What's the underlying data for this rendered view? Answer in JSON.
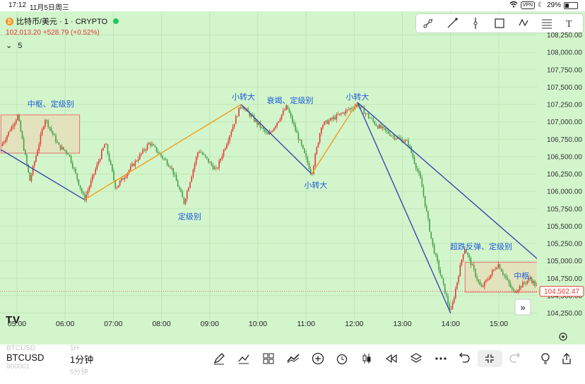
{
  "status_bar": {
    "time": "17:12",
    "date": "11月5日周三",
    "vpn": "VPN",
    "battery": "29%"
  },
  "header": {
    "coin_icon": "bitcoin-icon",
    "symbol_title": "比特币/美元 · 1 · CRYPTO",
    "price_line": "102,013.20 +528.79 (+0.52%)",
    "indicator_count": "5"
  },
  "toolbox": {
    "icons": [
      "ray-tool-icon",
      "trend-line-icon",
      "vertical-line-icon",
      "rectangle-icon",
      "path-icon",
      "fib-icon",
      "text-tool-icon"
    ]
  },
  "bottom_bar": {
    "symbol_ghost_above": "BTCUSD",
    "symbol": "BTCUSD",
    "symbol_ghost_below": "000001",
    "interval_ghost_above": "1H",
    "interval": "1分钟",
    "interval_ghost_below": "5分钟",
    "tools": [
      "pen-icon",
      "indicators-icon",
      "templates-icon",
      "compare-icon",
      "plus-circle-icon",
      "alarm-icon",
      "candle-icon",
      "replay-icon",
      "layers-icon",
      "more-icon",
      "undo-icon",
      "collapse-icon",
      "redo-icon",
      "idea-icon",
      "share-icon"
    ]
  },
  "colors": {
    "background": "#d3f5cc",
    "bullish": "#e53935",
    "bearish": "#43a047",
    "down_trend": "#3949ab",
    "up_trend": "#f39c12",
    "zone_fill": "#e4dfb8",
    "zone_border": "#e57373",
    "annotation": "#1e5bd8",
    "price_label_bg": "#ffffff"
  },
  "chart_data": {
    "type": "candlestick",
    "yaxis": {
      "min": 104250,
      "max": 108250,
      "ticks": [
        "108,250.00",
        "108,000.00",
        "107,750.00",
        "107,500.00",
        "107,250.00",
        "107,000.00",
        "106,750.00",
        "106,500.00",
        "106,250.00",
        "106,000.00",
        "105,750.00",
        "105,500.00",
        "105,250.00",
        "105,000.00",
        "104,750.00",
        "104,500.00",
        "104,250.00"
      ]
    },
    "xaxis": {
      "ticks": [
        "05:00",
        "06:00",
        "07:00",
        "08:00",
        "09:00",
        "10:00",
        "11:00",
        "12:00",
        "13:00",
        "14:00",
        "15:00"
      ]
    },
    "last_price": "104,562.47",
    "path_points": [
      {
        "t": "04:40",
        "p": 106650
      },
      {
        "t": "05:01",
        "p": 107090
      },
      {
        "t": "05:16",
        "p": 106150
      },
      {
        "t": "05:35",
        "p": 107050
      },
      {
        "t": "05:52",
        "p": 106650
      },
      {
        "t": "06:04",
        "p": 106550
      },
      {
        "t": "06:24",
        "p": 105880
      },
      {
        "t": "06:50",
        "p": 106700
      },
      {
        "t": "07:03",
        "p": 106050
      },
      {
        "t": "07:45",
        "p": 106700
      },
      {
        "t": "08:12",
        "p": 106350
      },
      {
        "t": "08:28",
        "p": 105840
      },
      {
        "t": "08:46",
        "p": 106600
      },
      {
        "t": "09:08",
        "p": 106300
      },
      {
        "t": "09:39",
        "p": 107250
      },
      {
        "t": "09:59",
        "p": 106980
      },
      {
        "t": "10:13",
        "p": 106800
      },
      {
        "t": "10:36",
        "p": 107220
      },
      {
        "t": "11:07",
        "p": 106250
      },
      {
        "t": "11:19",
        "p": 106950
      },
      {
        "t": "12:04",
        "p": 107250
      },
      {
        "t": "12:28",
        "p": 106950
      },
      {
        "t": "12:48",
        "p": 106800
      },
      {
        "t": "13:07",
        "p": 106700
      },
      {
        "t": "13:23",
        "p": 106150
      },
      {
        "t": "13:37",
        "p": 105250
      },
      {
        "t": "14:00",
        "p": 104250
      },
      {
        "t": "14:17",
        "p": 105200
      },
      {
        "t": "14:38",
        "p": 104600
      },
      {
        "t": "14:59",
        "p": 104960
      },
      {
        "t": "15:18",
        "p": 104550
      },
      {
        "t": "15:39",
        "p": 104750
      },
      {
        "t": "15:54",
        "p": 104520
      }
    ],
    "zigzag": [
      {
        "t": "04:40",
        "p": 106600
      },
      {
        "t": "06:24",
        "p": 105880
      },
      {
        "t": "09:39",
        "p": 107250
      },
      {
        "t": "11:07",
        "p": 106250
      },
      {
        "t": "12:04",
        "p": 107280
      },
      {
        "t": "14:00",
        "p": 104250
      }
    ],
    "trendline": {
      "from": {
        "t": "12:04",
        "p": 107280
      },
      "to": {
        "t": "15:54",
        "p": 104970
      }
    },
    "zones": [
      {
        "from": "04:40",
        "to": "06:18",
        "high": 107100,
        "low": 106550,
        "label": "中枢、定级别"
      },
      {
        "from": "14:18",
        "to": "15:54",
        "high": 104980,
        "low": 104550,
        "label": "中枢、定"
      }
    ],
    "annotations": [
      {
        "t": "05:42",
        "p": 107220,
        "text": "中枢、定级别"
      },
      {
        "t": "08:35",
        "p": 105600,
        "text": "定级别"
      },
      {
        "t": "09:42",
        "p": 107320,
        "text": "小转大"
      },
      {
        "t": "10:40",
        "p": 107270,
        "text": "衰竭、定级别"
      },
      {
        "t": "11:12",
        "p": 106050,
        "text": "小转大"
      },
      {
        "t": "12:04",
        "p": 107320,
        "text": "小转大"
      },
      {
        "t": "14:38",
        "p": 105170,
        "text": "超跌反弹、定级别"
      },
      {
        "t": "15:38",
        "p": 104750,
        "text": "中枢、定"
      }
    ]
  }
}
